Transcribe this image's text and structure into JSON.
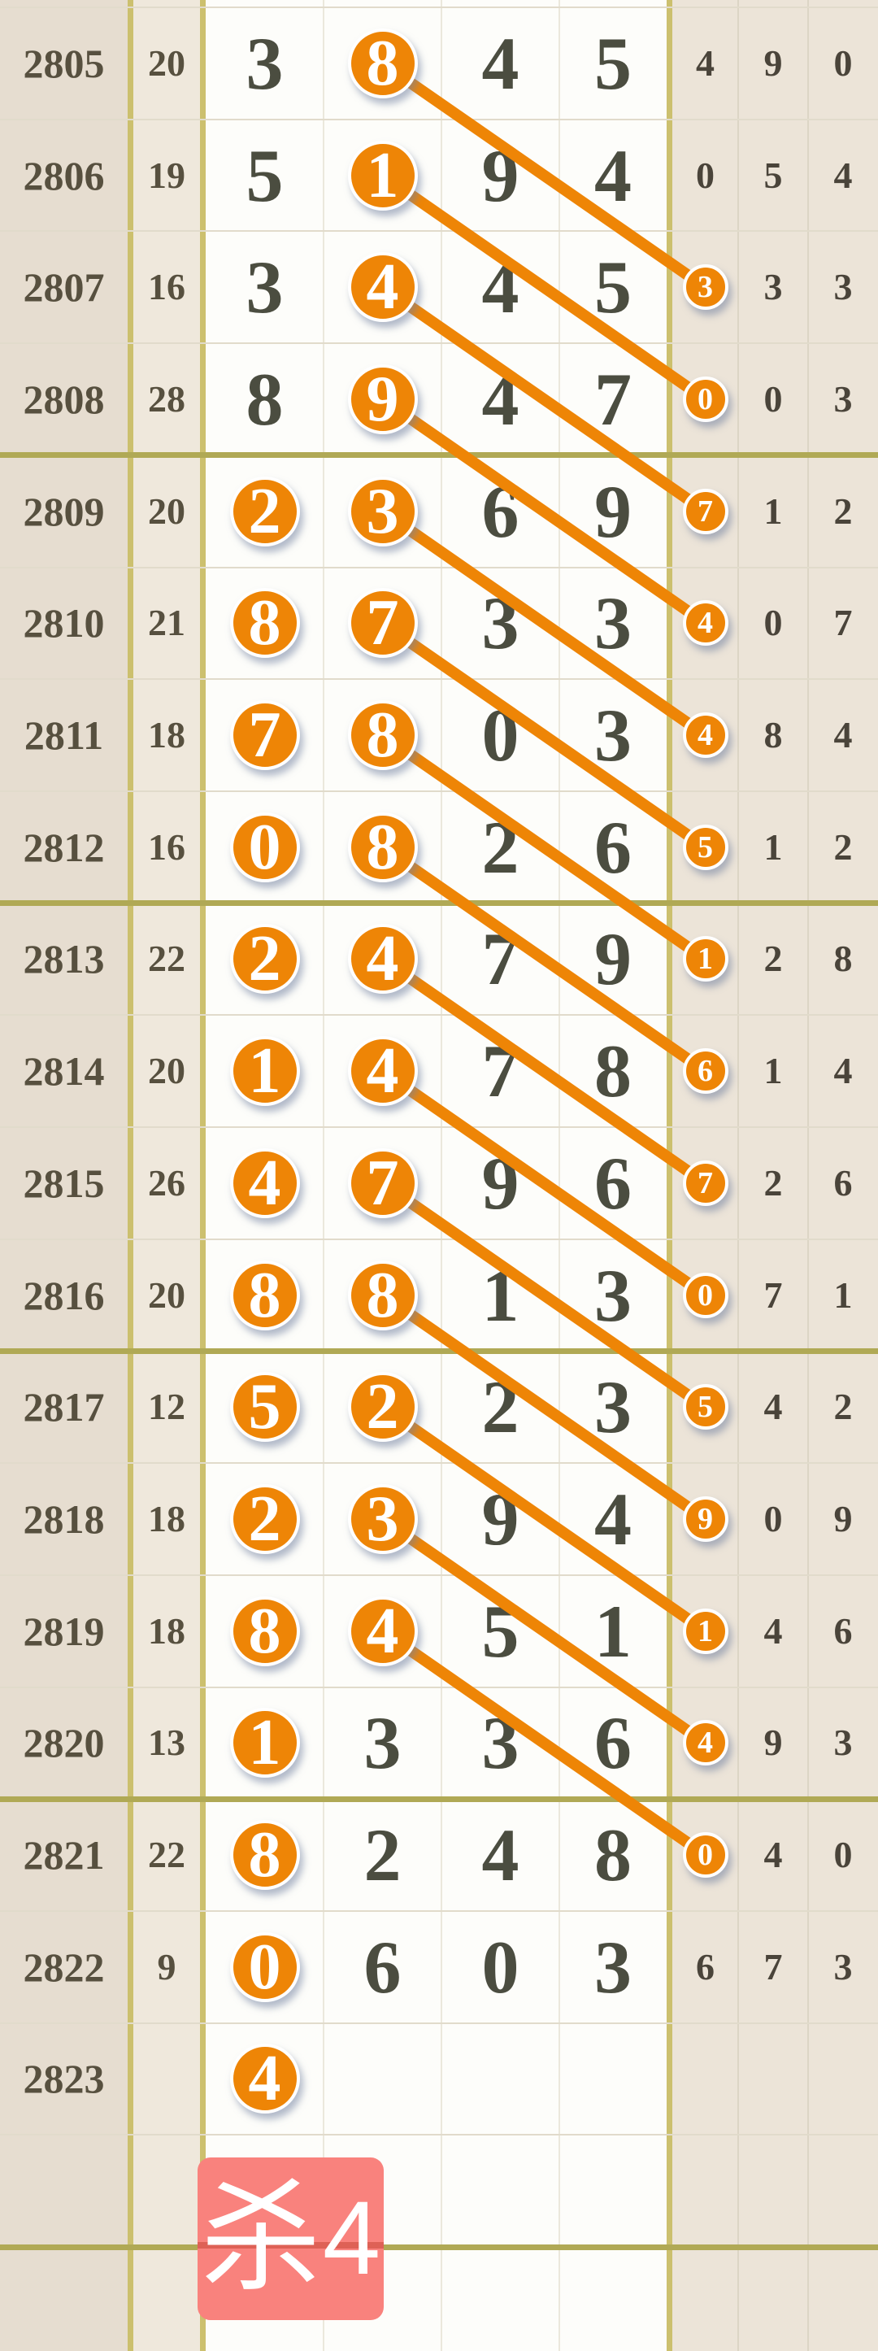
{
  "colors": {
    "accent_orange": "#ee8506",
    "olive_thick_line": "#b0a955",
    "olive_vertical_border": "#ccc06e",
    "thin_grid_line": "#e1dbcb",
    "white_grid_line": "#ebe8dc",
    "left_col_bg": "#e6ddd0",
    "sum_col_bg": "#efe8dc",
    "white_col_bg": "#fdfdfa",
    "right_col_bg": "#ece4d8",
    "big_digit_color": "#4b4d40",
    "issue_color": "#57503f",
    "badge_bg": "#f9827d",
    "badge_stripe": "#de6156"
  },
  "badge": {
    "label": "杀",
    "number": "4"
  },
  "chart_data": {
    "type": "table",
    "columns": [
      "issue",
      "sum",
      "digit1",
      "digit2",
      "digit3",
      "digit4",
      "tail1",
      "tail2",
      "tail3"
    ],
    "annotation": "杀4",
    "connection_rule": "each circled digit2 in row N links diagonally to the circled tail1 in row N+2",
    "rows": [
      {
        "issue": "2805",
        "sum": "20",
        "d1": "3",
        "d1c": false,
        "d2": "8",
        "d2c": true,
        "d3": "4",
        "d4": "5",
        "s1": "4",
        "s1c": false,
        "s2": "9",
        "s3": "0"
      },
      {
        "issue": "2806",
        "sum": "19",
        "d1": "5",
        "d1c": false,
        "d2": "1",
        "d2c": true,
        "d3": "9",
        "d4": "4",
        "s1": "0",
        "s1c": false,
        "s2": "5",
        "s3": "4"
      },
      {
        "issue": "2807",
        "sum": "16",
        "d1": "3",
        "d1c": false,
        "d2": "4",
        "d2c": true,
        "d3": "4",
        "d4": "5",
        "s1": "3",
        "s1c": true,
        "s2": "3",
        "s3": "3"
      },
      {
        "issue": "2808",
        "sum": "28",
        "d1": "8",
        "d1c": false,
        "d2": "9",
        "d2c": true,
        "d3": "4",
        "d4": "7",
        "s1": "0",
        "s1c": true,
        "s2": "0",
        "s3": "3"
      },
      {
        "issue": "2809",
        "sum": "20",
        "d1": "2",
        "d1c": true,
        "d2": "3",
        "d2c": true,
        "d3": "6",
        "d4": "9",
        "s1": "7",
        "s1c": true,
        "s2": "1",
        "s3": "2"
      },
      {
        "issue": "2810",
        "sum": "21",
        "d1": "8",
        "d1c": true,
        "d2": "7",
        "d2c": true,
        "d3": "3",
        "d4": "3",
        "s1": "4",
        "s1c": true,
        "s2": "0",
        "s3": "7"
      },
      {
        "issue": "2811",
        "sum": "18",
        "d1": "7",
        "d1c": true,
        "d2": "8",
        "d2c": true,
        "d3": "0",
        "d4": "3",
        "s1": "4",
        "s1c": true,
        "s2": "8",
        "s3": "4"
      },
      {
        "issue": "2812",
        "sum": "16",
        "d1": "0",
        "d1c": true,
        "d2": "8",
        "d2c": true,
        "d3": "2",
        "d4": "6",
        "s1": "5",
        "s1c": true,
        "s2": "1",
        "s3": "2"
      },
      {
        "issue": "2813",
        "sum": "22",
        "d1": "2",
        "d1c": true,
        "d2": "4",
        "d2c": true,
        "d3": "7",
        "d4": "9",
        "s1": "1",
        "s1c": true,
        "s2": "2",
        "s3": "8"
      },
      {
        "issue": "2814",
        "sum": "20",
        "d1": "1",
        "d1c": true,
        "d2": "4",
        "d2c": true,
        "d3": "7",
        "d4": "8",
        "s1": "6",
        "s1c": true,
        "s2": "1",
        "s3": "4"
      },
      {
        "issue": "2815",
        "sum": "26",
        "d1": "4",
        "d1c": true,
        "d2": "7",
        "d2c": true,
        "d3": "9",
        "d4": "6",
        "s1": "7",
        "s1c": true,
        "s2": "2",
        "s3": "6"
      },
      {
        "issue": "2816",
        "sum": "20",
        "d1": "8",
        "d1c": true,
        "d2": "8",
        "d2c": true,
        "d3": "1",
        "d4": "3",
        "s1": "0",
        "s1c": true,
        "s2": "7",
        "s3": "1"
      },
      {
        "issue": "2817",
        "sum": "12",
        "d1": "5",
        "d1c": true,
        "d2": "2",
        "d2c": true,
        "d3": "2",
        "d4": "3",
        "s1": "5",
        "s1c": true,
        "s2": "4",
        "s3": "2"
      },
      {
        "issue": "2818",
        "sum": "18",
        "d1": "2",
        "d1c": true,
        "d2": "3",
        "d2c": true,
        "d3": "9",
        "d4": "4",
        "s1": "9",
        "s1c": true,
        "s2": "0",
        "s3": "9"
      },
      {
        "issue": "2819",
        "sum": "18",
        "d1": "8",
        "d1c": true,
        "d2": "4",
        "d2c": true,
        "d3": "5",
        "d4": "1",
        "s1": "1",
        "s1c": true,
        "s2": "4",
        "s3": "6"
      },
      {
        "issue": "2820",
        "sum": "13",
        "d1": "1",
        "d1c": true,
        "d2": "3",
        "d2c": false,
        "d3": "3",
        "d4": "6",
        "s1": "4",
        "s1c": true,
        "s2": "9",
        "s3": "3"
      },
      {
        "issue": "2821",
        "sum": "22",
        "d1": "8",
        "d1c": true,
        "d2": "2",
        "d2c": false,
        "d3": "4",
        "d4": "8",
        "s1": "0",
        "s1c": true,
        "s2": "4",
        "s3": "0"
      },
      {
        "issue": "2822",
        "sum": "9",
        "d1": "0",
        "d1c": true,
        "d2": "6",
        "d2c": false,
        "d3": "0",
        "d4": "3",
        "s1": "6",
        "s1c": false,
        "s2": "7",
        "s3": "3"
      },
      {
        "issue": "2823",
        "sum": "",
        "d1": "4",
        "d1c": true,
        "d2": "",
        "d2c": false,
        "d3": "",
        "d4": "",
        "s1": "",
        "s1c": false,
        "s2": "",
        "s3": ""
      },
      {
        "issue": "",
        "sum": "",
        "d1": "",
        "d1c": false,
        "d2": "",
        "d2c": false,
        "d3": "",
        "d4": "",
        "s1": "",
        "s1c": false,
        "s2": "",
        "s3": ""
      }
    ]
  }
}
